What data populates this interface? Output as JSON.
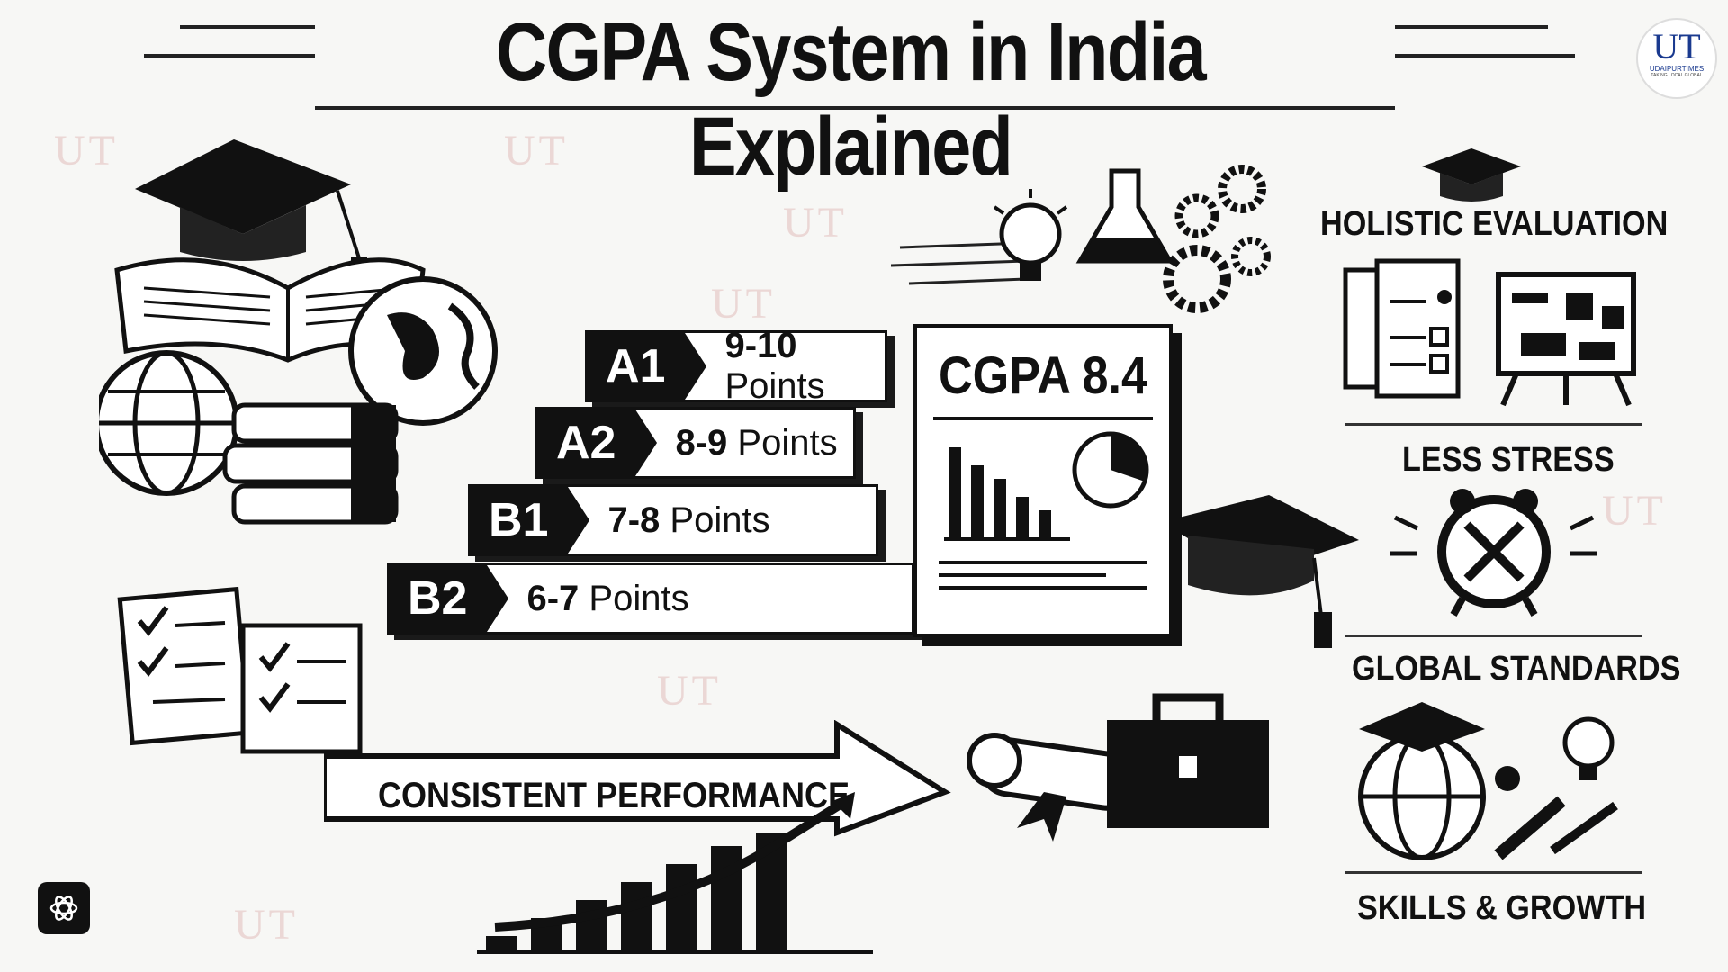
{
  "title": "CGPA System in India Explained",
  "logo": {
    "mark": "UT",
    "name": "UDAIPURTIMES",
    "tagline": "TAKING LOCAL GLOBAL",
    "color": "#1a3a8f",
    "accent": "#c0392b"
  },
  "grades": [
    {
      "code": "A1",
      "range": "9-10",
      "unit": "Points"
    },
    {
      "code": "A2",
      "range": "8-9",
      "unit": "Points"
    },
    {
      "code": "B1",
      "range": "7-8",
      "unit": "Points"
    },
    {
      "code": "B2",
      "range": "6-7",
      "unit": "Points"
    }
  ],
  "report": {
    "title": "CGPA 8.4"
  },
  "benefits": {
    "holistic": "HOLISTIC EVALUATION",
    "stress": "LESS STRESS",
    "global": "GLOBAL STANDARDS",
    "skills": "SKILLS & GROWTH"
  },
  "performance": "CONSISTENT PERFORMANCE",
  "watermark": "UT"
}
